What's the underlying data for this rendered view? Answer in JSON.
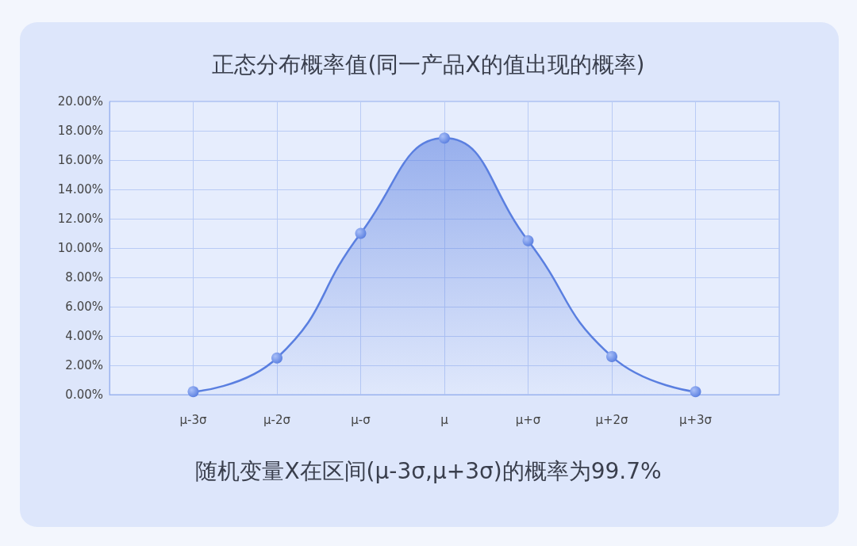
{
  "chart_data": {
    "type": "area",
    "title": "正态分布概率值(同一产品X的值出现的概率)",
    "categories": [
      null,
      "μ-3σ",
      "μ-2σ",
      "μ-σ",
      "μ",
      "μ+σ",
      "μ+2σ",
      "μ+3σ",
      null
    ],
    "series": [
      {
        "color": "#5a7fe0",
        "values": [
          null,
          0.2,
          2.5,
          11,
          17.5,
          10.5,
          2.6,
          0.2,
          null
        ]
      }
    ],
    "ylim": [
      0,
      20
    ],
    "yticks": [
      {
        "value": 0,
        "label": "0.00%"
      },
      {
        "value": 2,
        "label": "2.00%"
      },
      {
        "value": 4,
        "label": "4.00%"
      },
      {
        "value": 6,
        "label": "6.00%"
      },
      {
        "value": 8,
        "label": "8.00%"
      },
      {
        "value": 10,
        "label": "10.00%"
      },
      {
        "value": 12,
        "label": "12.00%"
      },
      {
        "value": 14,
        "label": "14.00%"
      },
      {
        "value": 16,
        "label": "16.00%"
      },
      {
        "value": 18,
        "label": "18.00%"
      },
      {
        "value": 20,
        "label": "20.00%"
      }
    ],
    "grid": true,
    "marker": "circle",
    "annotations": [
      "随机变量X在区间(μ-3σ,μ+3σ)的概率为99.7%"
    ]
  }
}
